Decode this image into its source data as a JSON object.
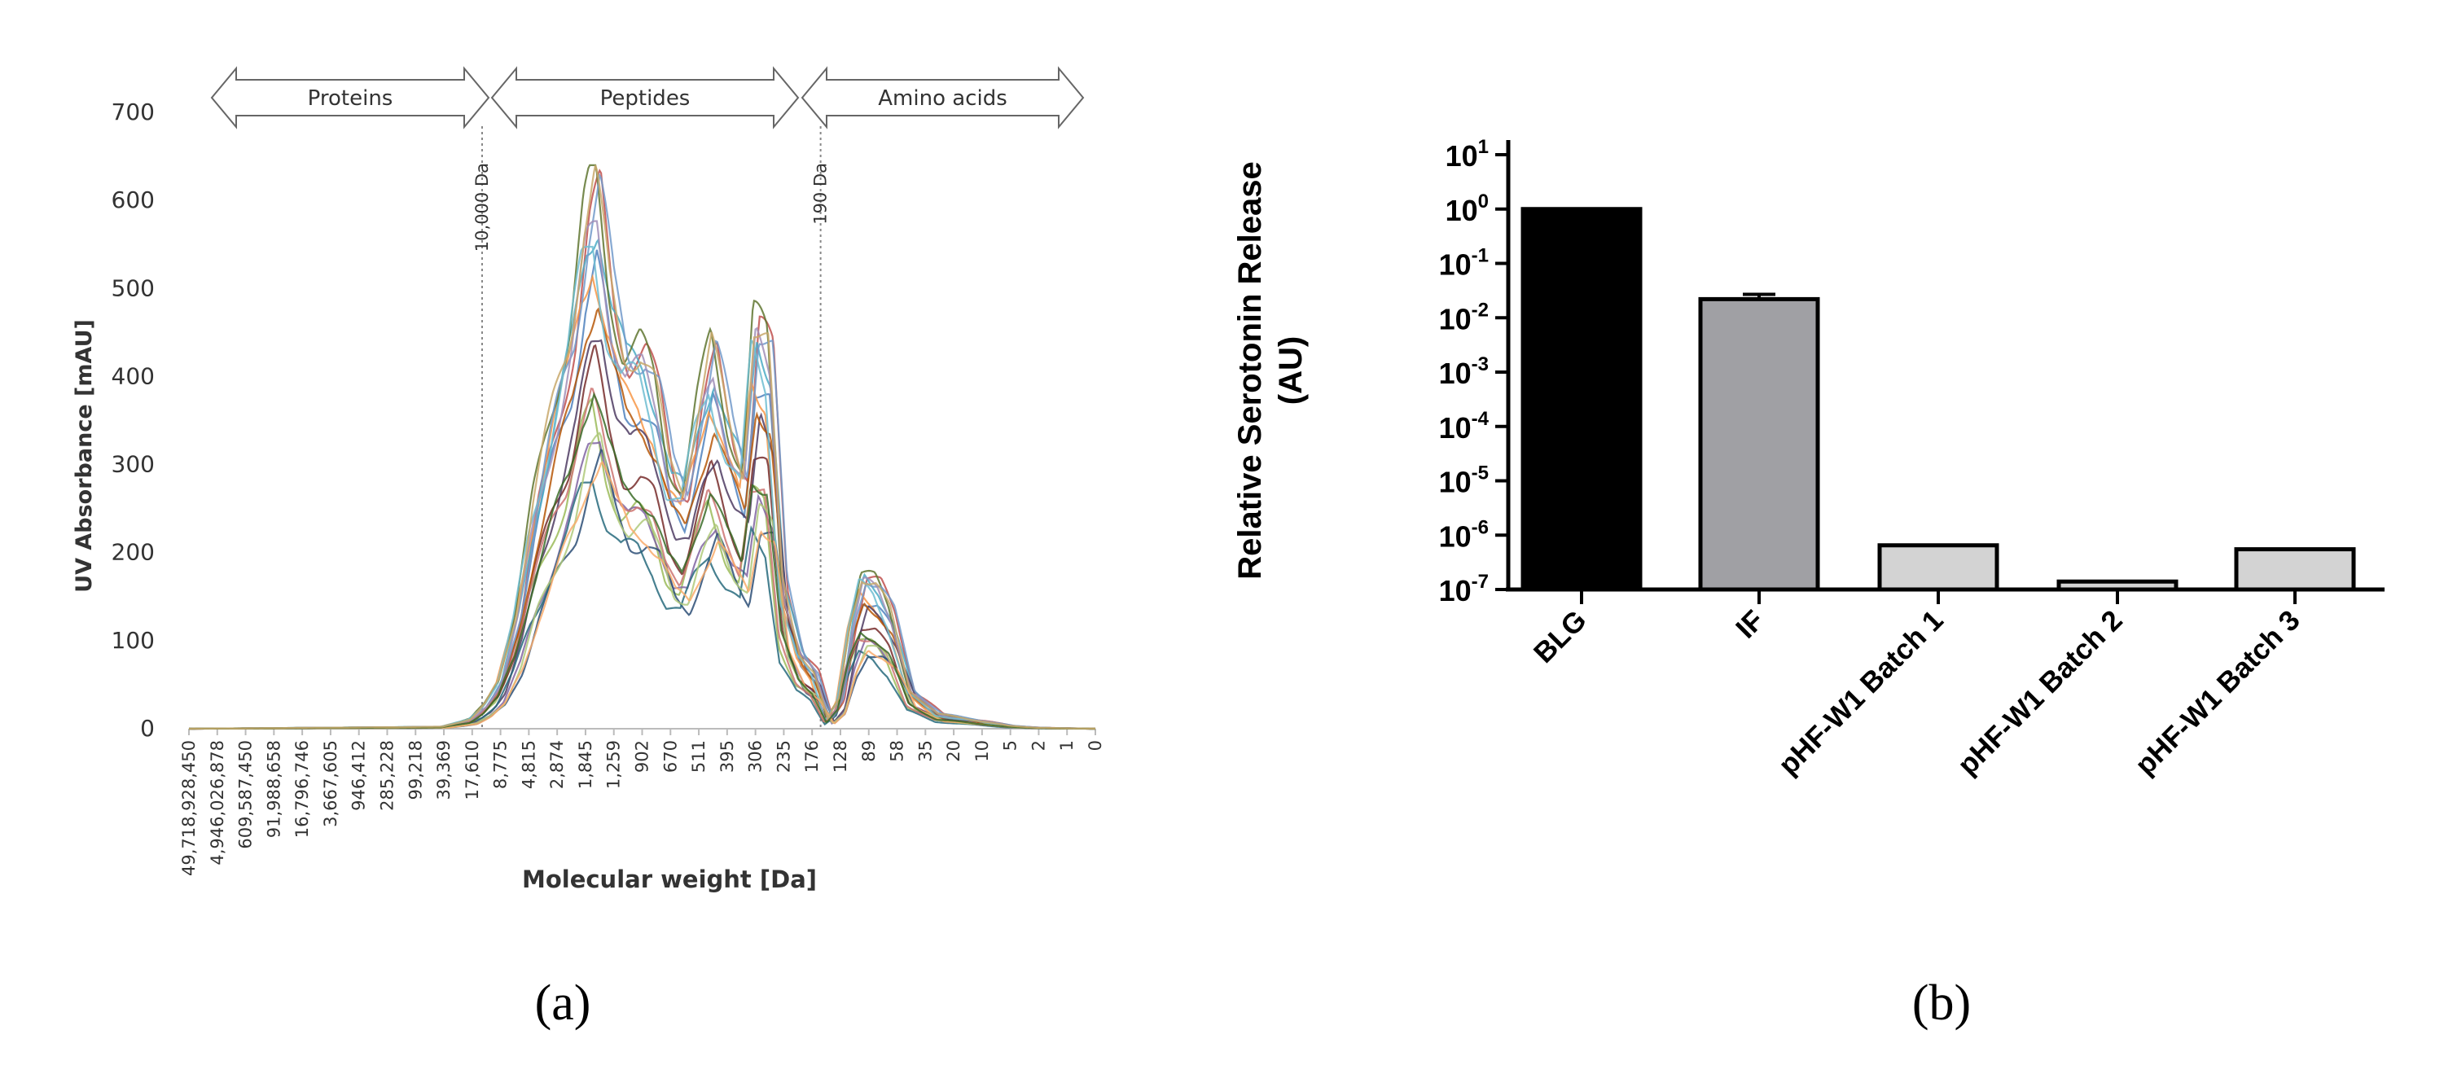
{
  "panel_labels": {
    "a": "(a)",
    "b": "(b)"
  },
  "chart_data": [
    {
      "type": "line",
      "xlabel": "Molecular weight [Da]",
      "ylabel": "UV Absorbance [mAU]",
      "ylim": [
        0,
        700
      ],
      "y_ticks": [
        "0",
        "100",
        "200",
        "300",
        "400",
        "500",
        "600",
        "700"
      ],
      "x_tick_labels": [
        "49,718,928,450",
        "4,946,026,878",
        "609,587,450",
        "91,988,658",
        "16,796,746",
        "3,667,605",
        "946,412",
        "285,228",
        "99,218",
        "39,369",
        "17,610",
        "8,775",
        "4,815",
        "2,874",
        "1,845",
        "1,259",
        "902",
        "670",
        "511",
        "395",
        "306",
        "235",
        "176",
        "128",
        "89",
        "58",
        "35",
        "20",
        "10",
        "5",
        "2",
        "1",
        "0"
      ],
      "regions": [
        "Proteins",
        "Peptides",
        "Amino acids"
      ],
      "cutoffs": [
        "10,000 Da",
        "190 Da"
      ],
      "grid": false,
      "series_profile": {
        "description_units": "x = tick index, y = mAU",
        "x": [
          0,
          9,
          10,
          10.5,
          11,
          11.6,
          12.2,
          12.9,
          13.5,
          14.0,
          14.4,
          14.9,
          15.4,
          16.0,
          16.5,
          17.0,
          17.5,
          18.0,
          18.5,
          19.1,
          19.6,
          20.0,
          20.5,
          21.0,
          21.6,
          22.1,
          22.6,
          23.0,
          23.4,
          23.8,
          24.3,
          24.8,
          25.5,
          26.5,
          28,
          29,
          30,
          32
        ],
        "y": [
          0,
          2,
          10,
          25,
          50,
          120,
          230,
          330,
          410,
          520,
          560,
          450,
          390,
          390,
          350,
          270,
          250,
          330,
          390,
          310,
          270,
          420,
          390,
          150,
          80,
          60,
          10,
          30,
          110,
          160,
          150,
          120,
          40,
          15,
          8,
          3,
          1,
          0
        ]
      },
      "series_count_approx": 20
    },
    {
      "type": "bar",
      "ylabel": "Relative Serotonin Release (AU)",
      "ylabel_lines": [
        "Relative Serotonin Release",
        "(AU)"
      ],
      "yscale": "log",
      "ylim": [
        1e-07,
        10
      ],
      "y_ticks": [
        {
          "base": "10",
          "exp": "1"
        },
        {
          "base": "10",
          "exp": "0"
        },
        {
          "base": "10",
          "exp": "-1"
        },
        {
          "base": "10",
          "exp": "-2"
        },
        {
          "base": "10",
          "exp": "-3"
        },
        {
          "base": "10",
          "exp": "-4"
        },
        {
          "base": "10",
          "exp": "-5"
        },
        {
          "base": "10",
          "exp": "-6"
        },
        {
          "base": "10",
          "exp": "-7"
        }
      ],
      "categories": [
        "BLG",
        "IF",
        "pHF-W1 Batch 1",
        "pHF-W1 Batch 2",
        "pHF-W1 Batch 3"
      ],
      "values": [
        1.0,
        0.022,
        6.5e-07,
        1.4e-07,
        5.5e-07
      ],
      "errors_upper": [
        null,
        0.027,
        null,
        null,
        null
      ],
      "colors": [
        "#000000",
        "#a0a0a4",
        "#d3d3d3",
        "#d3d3d3",
        "#d3d3d3"
      ]
    }
  ]
}
